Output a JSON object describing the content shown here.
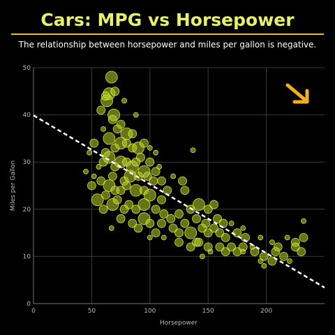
{
  "title": "Cars: MPG vs Horsepower",
  "subtitle": "The relationship between horsepower and miles per gallon is negative.",
  "colors": {
    "title": "#e6f06a",
    "divider": "#f0c020",
    "points": "#b8d42a",
    "arrow": "#f0b020",
    "trendline": "#ffffff"
  },
  "annotation_icon": "down-right-arrow-icon",
  "chart_data": {
    "type": "scatter",
    "title": "Cars: MPG vs Horsepower",
    "subtitle": "The relationship between horsepower and miles per gallon is negative.",
    "xlabel": "Horsepower",
    "ylabel": "Miles per Gallon",
    "xlim": [
      0,
      250
    ],
    "ylim": [
      0,
      50
    ],
    "xticks": [
      0,
      50,
      100,
      150,
      200
    ],
    "yticks": [
      0,
      10,
      20,
      30,
      40,
      50
    ],
    "grid": true,
    "trendline": {
      "style": "dashed",
      "points": [
        [
          0,
          39.9
        ],
        [
          250,
          3.4
        ]
      ]
    },
    "points": [
      [
        67,
        48,
        3
      ],
      [
        65,
        44.5,
        3
      ],
      [
        63,
        43,
        3
      ],
      [
        62,
        44,
        2
      ],
      [
        70,
        45,
        2
      ],
      [
        58,
        41,
        2
      ],
      [
        78,
        43,
        1
      ],
      [
        69,
        40,
        3
      ],
      [
        75,
        38,
        2
      ],
      [
        68,
        39,
        2
      ],
      [
        80,
        36,
        3
      ],
      [
        72,
        37,
        2
      ],
      [
        85,
        36,
        2
      ],
      [
        60,
        37,
        1
      ],
      [
        88,
        40,
        1
      ],
      [
        52,
        34,
        2
      ],
      [
        65,
        35,
        3
      ],
      [
        70,
        33,
        2
      ],
      [
        75,
        34,
        3
      ],
      [
        80,
        34,
        2
      ],
      [
        85,
        33,
        2
      ],
      [
        90,
        33,
        3
      ],
      [
        95,
        34,
        2
      ],
      [
        100,
        33,
        1
      ],
      [
        105,
        32,
        1
      ],
      [
        62,
        32,
        2
      ],
      [
        48,
        32,
        1
      ],
      [
        60,
        30,
        2
      ],
      [
        65,
        31,
        3
      ],
      [
        70,
        29,
        2
      ],
      [
        75,
        30,
        3
      ],
      [
        80,
        30,
        2
      ],
      [
        85,
        29,
        3
      ],
      [
        88,
        30,
        2
      ],
      [
        92,
        31,
        2
      ],
      [
        95,
        28,
        3
      ],
      [
        100,
        30,
        2
      ],
      [
        105,
        28,
        2
      ],
      [
        108,
        29,
        1
      ],
      [
        56,
        29,
        1
      ],
      [
        68,
        27,
        2
      ],
      [
        78,
        26,
        2
      ],
      [
        83,
        27,
        3
      ],
      [
        90,
        27,
        2
      ],
      [
        98,
        27,
        2
      ],
      [
        103,
        26,
        2
      ],
      [
        110,
        26,
        2
      ],
      [
        45,
        28,
        1
      ],
      [
        52,
        27,
        1
      ],
      [
        58,
        26,
        2
      ],
      [
        65,
        25,
        3
      ],
      [
        70,
        24,
        2
      ],
      [
        75,
        24,
        2
      ],
      [
        80,
        25,
        2
      ],
      [
        88,
        24,
        3
      ],
      [
        95,
        24,
        2
      ],
      [
        100,
        23,
        3
      ],
      [
        110,
        22,
        2
      ],
      [
        115,
        24,
        2
      ],
      [
        128,
        26,
        2
      ],
      [
        137,
        32.5,
        1
      ],
      [
        120,
        27,
        1
      ],
      [
        130,
        24,
        2
      ],
      [
        50,
        25,
        2
      ],
      [
        55,
        22,
        3
      ],
      [
        62,
        23,
        2
      ],
      [
        68,
        21,
        3
      ],
      [
        72,
        22,
        2
      ],
      [
        78,
        20,
        2
      ],
      [
        82,
        21,
        2
      ],
      [
        88,
        20,
        2
      ],
      [
        95,
        21,
        3
      ],
      [
        105,
        20,
        2
      ],
      [
        112,
        19,
        2
      ],
      [
        125,
        19,
        2
      ],
      [
        135,
        20,
        2
      ],
      [
        142,
        21,
        3
      ],
      [
        150,
        20,
        2
      ],
      [
        155,
        21,
        2
      ],
      [
        60,
        20,
        2
      ],
      [
        75,
        18,
        2
      ],
      [
        85,
        17,
        2
      ],
      [
        95,
        18,
        3
      ],
      [
        100,
        17,
        2
      ],
      [
        110,
        17,
        2
      ],
      [
        118,
        18,
        2
      ],
      [
        130,
        17,
        2
      ],
      [
        140,
        18,
        2
      ],
      [
        148,
        17,
        2
      ],
      [
        158,
        18,
        2
      ],
      [
        163,
        17,
        2
      ],
      [
        170,
        17,
        1
      ],
      [
        180,
        16,
        1
      ],
      [
        232,
        17.5,
        1
      ],
      [
        90,
        16,
        2
      ],
      [
        105,
        15,
        2
      ],
      [
        120,
        16,
        2
      ],
      [
        125,
        15,
        2
      ],
      [
        135,
        15,
        3
      ],
      [
        145,
        16,
        2
      ],
      [
        150,
        15,
        2
      ],
      [
        155,
        16,
        2
      ],
      [
        160,
        15,
        2
      ],
      [
        165,
        14,
        2
      ],
      [
        175,
        15,
        2
      ],
      [
        182,
        14,
        2
      ],
      [
        195,
        14,
        1
      ],
      [
        205,
        13,
        1
      ],
      [
        210,
        12,
        2
      ],
      [
        218,
        14,
        1
      ],
      [
        225,
        13,
        2
      ],
      [
        232,
        14,
        2
      ],
      [
        140,
        13,
        2
      ],
      [
        125,
        13,
        2
      ],
      [
        112,
        14,
        1
      ],
      [
        100,
        14,
        1
      ],
      [
        135,
        12,
        2
      ],
      [
        142,
        13,
        2
      ],
      [
        150,
        12,
        2
      ],
      [
        160,
        12,
        2
      ],
      [
        165,
        11,
        2
      ],
      [
        170,
        12,
        2
      ],
      [
        175,
        11,
        2
      ],
      [
        180,
        12,
        2
      ],
      [
        190,
        11,
        2
      ],
      [
        198,
        10,
        2
      ],
      [
        208,
        11,
        2
      ],
      [
        215,
        10,
        2
      ],
      [
        220,
        9,
        1
      ],
      [
        225,
        12,
        2
      ],
      [
        230,
        11,
        2
      ],
      [
        198,
        8,
        1
      ],
      [
        195,
        9,
        1
      ],
      [
        205,
        9,
        2
      ],
      [
        152,
        11,
        1
      ],
      [
        188,
        12,
        1
      ],
      [
        145,
        10,
        1
      ],
      [
        180,
        11,
        1
      ],
      [
        67,
        16,
        1
      ]
    ]
  }
}
